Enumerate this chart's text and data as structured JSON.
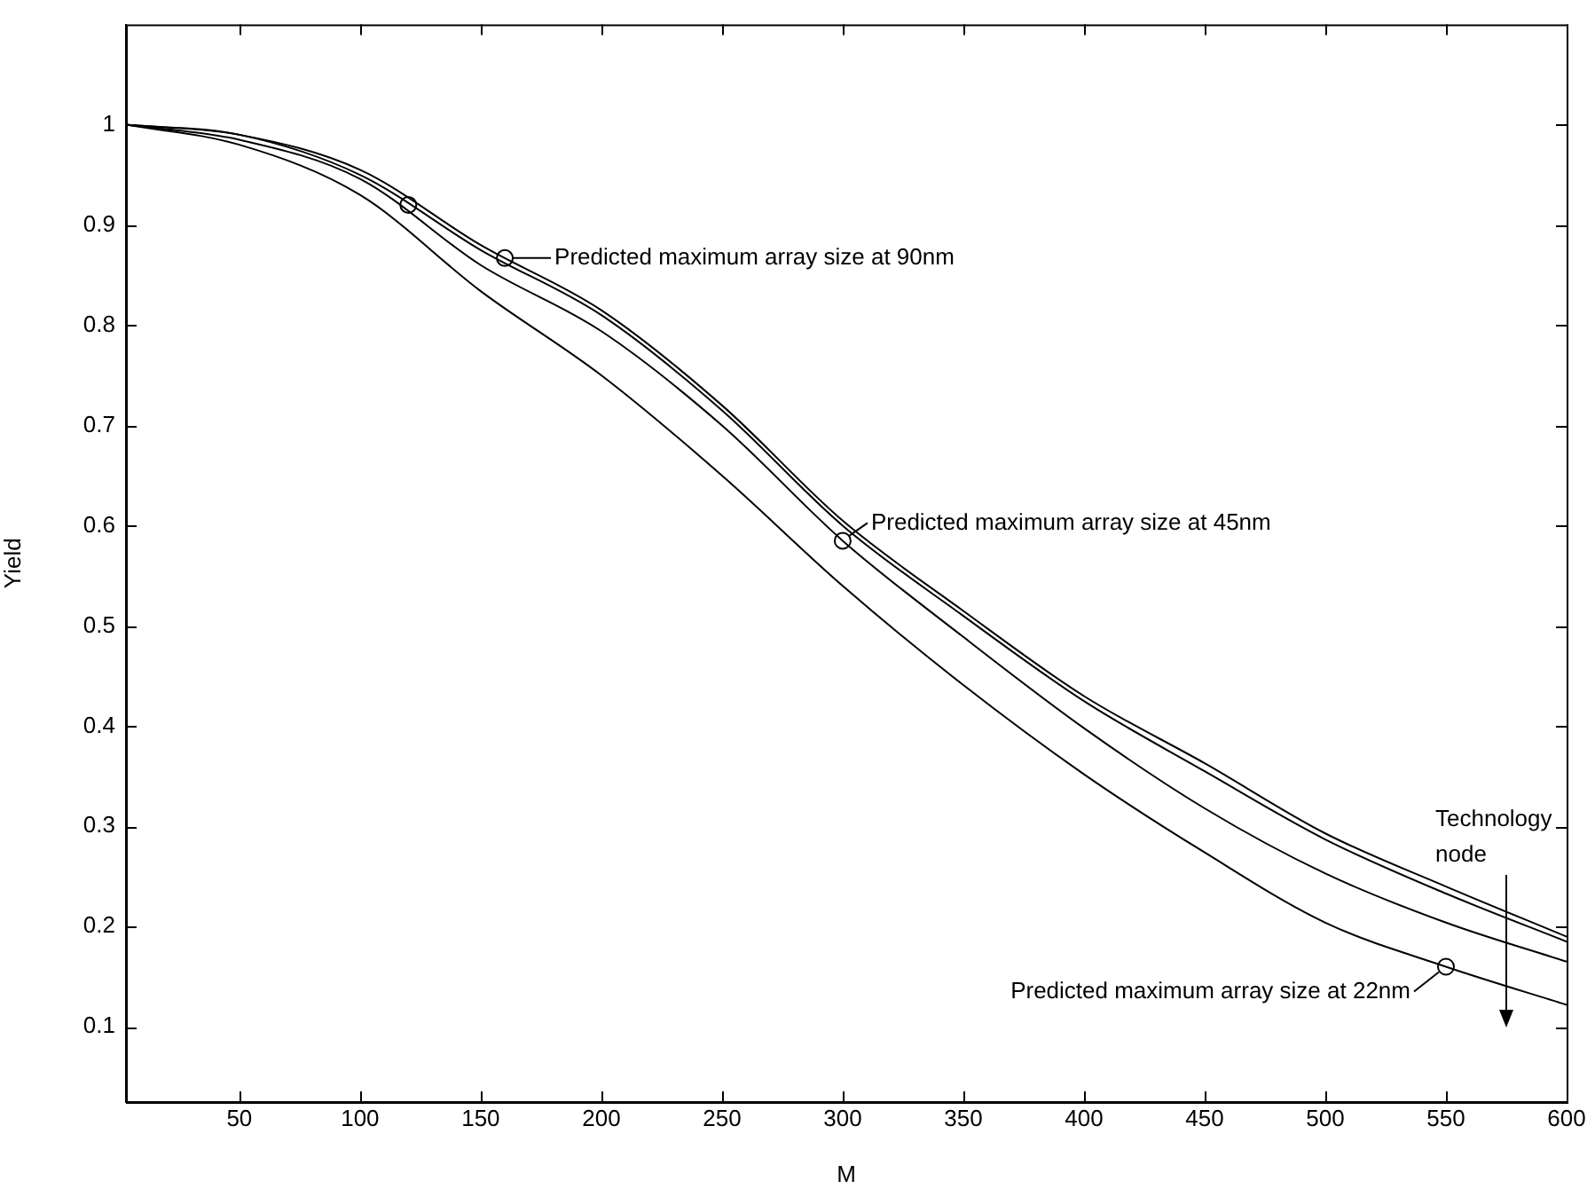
{
  "chart_data": {
    "type": "line",
    "xlabel": "M",
    "ylabel": "Yield",
    "xlim": [
      3,
      600
    ],
    "ylim": [
      0.025,
      1.1
    ],
    "xticks": [
      50,
      100,
      150,
      200,
      250,
      300,
      350,
      400,
      450,
      500,
      550,
      600
    ],
    "yticks": [
      0.1,
      0.2,
      0.3,
      0.4,
      0.5,
      0.6,
      0.7,
      0.8,
      0.9,
      1
    ],
    "grid": false,
    "legend": false,
    "line_style": "solid",
    "marker": "none",
    "x": [
      3,
      50,
      100,
      150,
      200,
      250,
      300,
      350,
      400,
      450,
      500,
      550,
      600
    ],
    "series": [
      {
        "color": "#000000",
        "values": [
          1,
          0.99,
          0.955,
          0.88,
          0.815,
          0.72,
          0.605,
          0.515,
          0.43,
          0.363,
          0.293,
          0.24,
          0.19
        ]
      },
      {
        "color": "#000000",
        "values": [
          1,
          0.99,
          0.95,
          0.875,
          0.81,
          0.715,
          0.6,
          0.51,
          0.425,
          0.355,
          0.287,
          0.233,
          0.185
        ]
      },
      {
        "color": "#000000",
        "values": [
          1,
          0.985,
          0.946,
          0.86,
          0.794,
          0.7,
          0.585,
          0.489,
          0.398,
          0.318,
          0.253,
          0.204,
          0.165
        ]
      },
      {
        "color": "#000000",
        "values": [
          1,
          0.98,
          0.93,
          0.834,
          0.75,
          0.65,
          0.54,
          0.441,
          0.352,
          0.274,
          0.204,
          0.16,
          0.122
        ]
      },
      {
        "type": "scatter",
        "marker": "circle",
        "color": "#000000",
        "x": [
          120,
          160,
          300,
          550
        ],
        "values": [
          0.92,
          0.867,
          0.585,
          0.16
        ]
      }
    ],
    "annotations": [
      {
        "text": "Predicted maximum array size at 90nm",
        "x": 160,
        "y": 0.867
      },
      {
        "text": "Predicted maximum array size at 45nm",
        "x": 300,
        "y": 0.585
      },
      {
        "text": "Predicted maximum array size at 22nm",
        "x": 550,
        "y": 0.16
      },
      "Technology node"
    ]
  }
}
